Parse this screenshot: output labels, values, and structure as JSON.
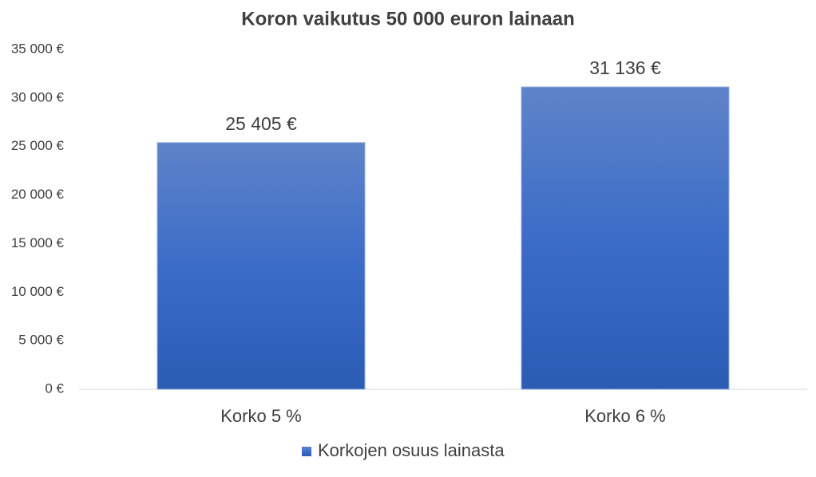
{
  "chart_data": {
    "type": "bar",
    "title": "Koron vaikutus 50 000 euron lainaan",
    "categories": [
      "Korko 5 %",
      "Korko 6 %"
    ],
    "series": [
      {
        "name": "Korkojen osuus lainasta",
        "color": "#4472c4",
        "values": [
          25405,
          31136
        ],
        "value_labels": [
          "25 405 €",
          "31 136 €"
        ]
      }
    ],
    "ylim": [
      0,
      35000
    ],
    "yticks": [
      {
        "value": 0,
        "label": "0 €"
      },
      {
        "value": 5000,
        "label": "5 000 €"
      },
      {
        "value": 10000,
        "label": "10 000 €"
      },
      {
        "value": 15000,
        "label": "15 000 €"
      },
      {
        "value": 20000,
        "label": "20 000 €"
      },
      {
        "value": 25000,
        "label": "25 000 €"
      },
      {
        "value": 30000,
        "label": "30 000 €"
      },
      {
        "value": 35000,
        "label": "35 000 €"
      }
    ],
    "grid": false,
    "legend": "bottom"
  }
}
